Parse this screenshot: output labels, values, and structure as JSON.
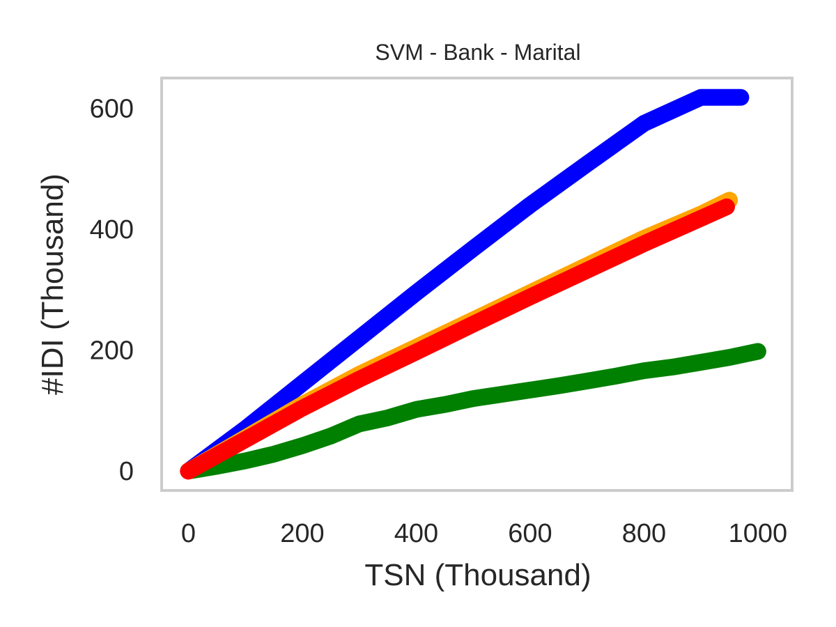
{
  "chart_data": {
    "type": "line",
    "title": "SVM - Bank - Marital",
    "xlabel": "TSN (Thousand)",
    "ylabel": "#IDI (Thousand)",
    "xlim": [
      -47,
      1060
    ],
    "ylim": [
      -32,
      650
    ],
    "xticks": [
      0,
      200,
      400,
      600,
      800,
      1000
    ],
    "yticks": [
      0,
      200,
      400,
      600
    ],
    "grid": false,
    "legend": "none",
    "series": [
      {
        "color": "#008000",
        "x": [
          0,
          50,
          100,
          150,
          200,
          250,
          300,
          350,
          400,
          450,
          500,
          550,
          600,
          650,
          700,
          750,
          800,
          850,
          900,
          950,
          1000
        ],
        "y": [
          0,
          8,
          17,
          28,
          42,
          58,
          78,
          88,
          102,
          110,
          120,
          127,
          134,
          141,
          149,
          157,
          166,
          172,
          180,
          188,
          198
        ]
      },
      {
        "color": "#0000ff",
        "x": [
          0,
          100,
          200,
          300,
          400,
          500,
          600,
          700,
          800,
          900,
          970
        ],
        "y": [
          0,
          70,
          145,
          220,
          295,
          368,
          440,
          508,
          575,
          618,
          618
        ]
      },
      {
        "color": "#ffa500",
        "x": [
          0,
          100,
          200,
          300,
          400,
          500,
          600,
          700,
          800,
          900,
          950
        ],
        "y": [
          0,
          55,
          110,
          160,
          205,
          250,
          295,
          340,
          385,
          425,
          448
        ]
      },
      {
        "color": "#ff0000",
        "x": [
          0,
          100,
          200,
          300,
          400,
          500,
          600,
          700,
          800,
          900,
          945
        ],
        "y": [
          0,
          52,
          104,
          152,
          197,
          243,
          288,
          332,
          376,
          418,
          437
        ]
      }
    ]
  }
}
